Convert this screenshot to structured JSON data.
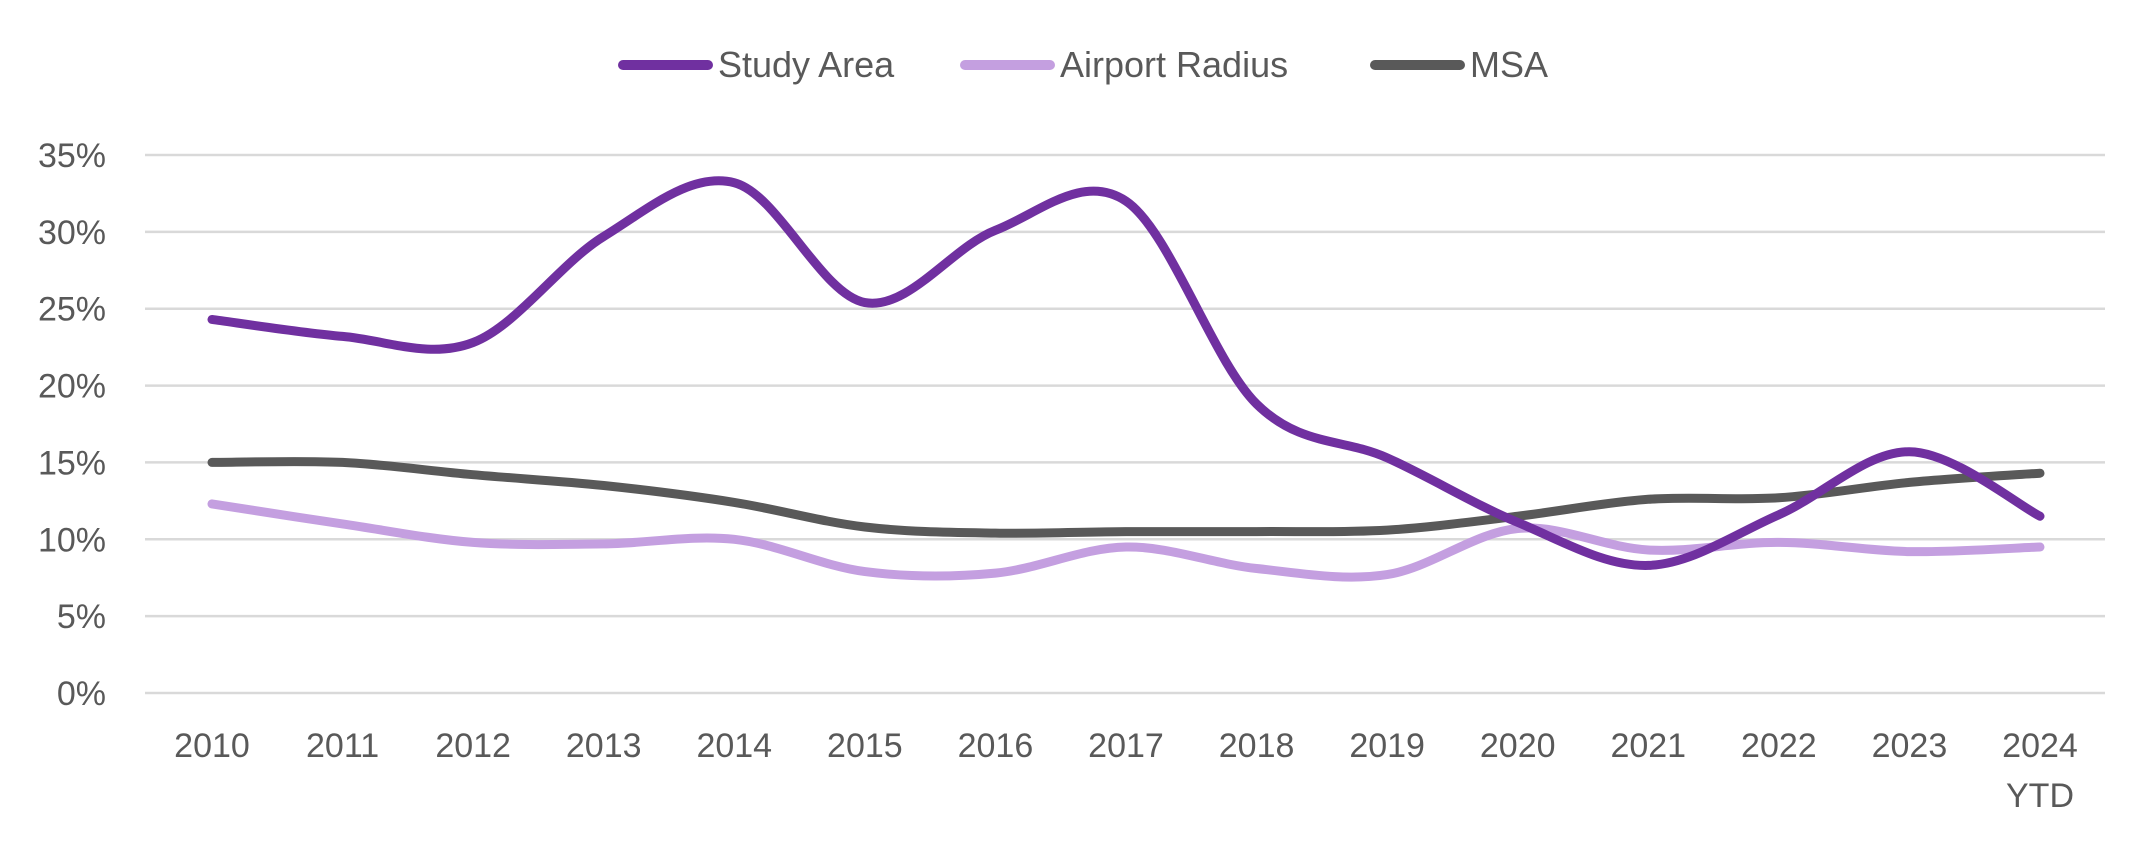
{
  "chart_data": {
    "type": "line",
    "title": "",
    "xlabel": "",
    "ylabel": "",
    "categories": [
      "2010",
      "2011",
      "2012",
      "2013",
      "2014",
      "2015",
      "2016",
      "2017",
      "2018",
      "2019",
      "2020",
      "2021",
      "2022",
      "2023",
      "2024 YTD"
    ],
    "category_lines": [
      [
        "2010"
      ],
      [
        "2011"
      ],
      [
        "2012"
      ],
      [
        "2013"
      ],
      [
        "2014"
      ],
      [
        "2015"
      ],
      [
        "2016"
      ],
      [
        "2017"
      ],
      [
        "2018"
      ],
      [
        "2019"
      ],
      [
        "2020"
      ],
      [
        "2021"
      ],
      [
        "2022"
      ],
      [
        "2023"
      ],
      [
        "2024",
        "YTD"
      ]
    ],
    "ylim": [
      0,
      35
    ],
    "yticks": [
      0,
      5,
      10,
      15,
      20,
      25,
      30,
      35
    ],
    "ytick_labels": [
      "0%",
      "5%",
      "10%",
      "15%",
      "20%",
      "25%",
      "30%",
      "35%"
    ],
    "grid": true,
    "legend_position": "top-center",
    "smooth": true,
    "series": [
      {
        "name": "Study Area",
        "color": "#7030a0",
        "values": [
          24.3,
          23.2,
          22.8,
          29.7,
          33.2,
          25.4,
          30.1,
          32.0,
          18.8,
          15.3,
          11.1,
          8.3,
          11.6,
          15.7,
          11.5
        ]
      },
      {
        "name": "Airport Radius",
        "color": "#c49fe0",
        "values": [
          12.3,
          11.0,
          9.8,
          9.7,
          10.0,
          7.9,
          7.8,
          9.5,
          8.1,
          7.7,
          10.7,
          9.3,
          9.8,
          9.2,
          9.5
        ]
      },
      {
        "name": "MSA",
        "color": "#595959",
        "values": [
          15.0,
          15.0,
          14.2,
          13.5,
          12.4,
          10.8,
          10.4,
          10.5,
          10.5,
          10.6,
          11.5,
          12.6,
          12.7,
          13.7,
          14.3
        ]
      }
    ]
  }
}
